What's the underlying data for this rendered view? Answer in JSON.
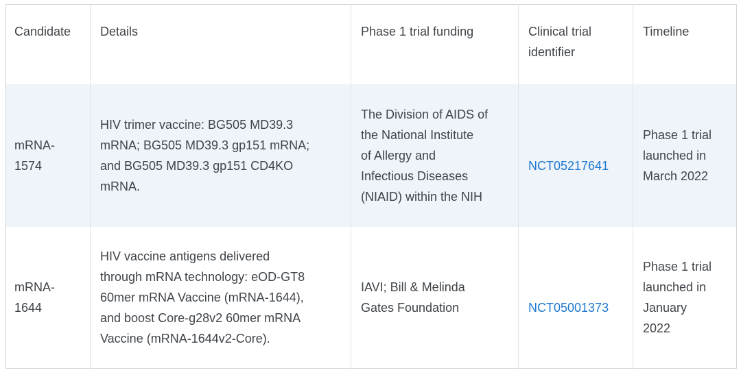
{
  "colors": {
    "row_highlight": "#eff4fa",
    "link_blue": "#1e78d0",
    "text": "#3f4449",
    "border_outer": "#d4d4d8",
    "border_inner": "#e3e3e7"
  },
  "table": {
    "columns": [
      {
        "key": "candidate",
        "label": "Candidate"
      },
      {
        "key": "details",
        "label": "Details"
      },
      {
        "key": "funding",
        "label": "Phase 1 trial funding"
      },
      {
        "key": "identifier",
        "label": "Clinical trial identifier"
      },
      {
        "key": "timeline",
        "label": "Timeline"
      }
    ],
    "rows": [
      {
        "candidate": "mRNA-1574",
        "details": "HIV trimer vaccine: BG505 MD39.3\nmRNA; BG505 MD39.3 gp151 mRNA;\nand BG505 MD39.3 gp151 CD4KO\nmRNA.",
        "funding": "The Division of AIDS of\nthe National Institute\nof Allergy and\nInfectious Diseases\n(NIAID) within the NIH",
        "identifier": "NCT05217641",
        "timeline": "Phase 1 trial\nlaunched in\nMarch 2022"
      },
      {
        "candidate": "mRNA-1644",
        "details": "HIV vaccine antigens delivered\nthrough mRNA technology: eOD-GT8\n60mer mRNA Vaccine (mRNA-1644),\nand boost Core-g28v2 60mer mRNA\nVaccine (mRNA-1644v2-Core).",
        "funding": "IAVI; Bill & Melinda\nGates Foundation",
        "identifier": "NCT05001373",
        "timeline": "Phase 1 trial\nlaunched in\nJanuary\n2022"
      }
    ]
  }
}
